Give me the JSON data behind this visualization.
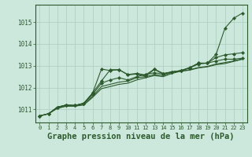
{
  "background_color": "#cce8dc",
  "grid_color": "#aaccbb",
  "line_color": "#2d5a2d",
  "marker_color": "#2d5a2d",
  "xlabel": "Graphe pression niveau de la mer (hPa)",
  "xlabel_fontsize": 7.5,
  "ylabel_ticks": [
    1011,
    1012,
    1013,
    1014,
    1015
  ],
  "xlim": [
    -0.5,
    23.5
  ],
  "ylim": [
    1010.4,
    1015.8
  ],
  "xticks": [
    0,
    1,
    2,
    3,
    4,
    5,
    6,
    7,
    8,
    9,
    10,
    11,
    12,
    13,
    14,
    15,
    16,
    17,
    18,
    19,
    20,
    21,
    22,
    23
  ],
  "series": [
    [
      1010.7,
      1010.8,
      1011.05,
      1011.15,
      1011.15,
      1011.2,
      1011.55,
      1011.95,
      1012.05,
      1012.15,
      1012.2,
      1012.35,
      1012.45,
      1012.55,
      1012.5,
      1012.65,
      1012.75,
      1012.8,
      1012.9,
      1012.95,
      1013.05,
      1013.1,
      1013.2,
      1013.3
    ],
    [
      1010.7,
      1010.8,
      1011.05,
      1011.15,
      1011.15,
      1011.25,
      1011.6,
      1012.05,
      1012.15,
      1012.25,
      1012.3,
      1012.45,
      1012.5,
      1012.6,
      1012.55,
      1012.7,
      1012.75,
      1012.82,
      1012.92,
      1012.97,
      1013.08,
      1013.15,
      1013.22,
      1013.32
    ],
    [
      1010.7,
      1010.8,
      1011.1,
      1011.2,
      1011.18,
      1011.28,
      1011.68,
      1012.2,
      1012.35,
      1012.45,
      1012.35,
      1012.5,
      1012.6,
      1012.68,
      1012.62,
      1012.72,
      1012.77,
      1012.9,
      1013.08,
      1013.12,
      1013.22,
      1013.3,
      1013.3,
      1013.35
    ],
    [
      1010.7,
      1010.8,
      1011.1,
      1011.2,
      1011.18,
      1011.28,
      1011.75,
      1012.3,
      1012.82,
      1012.82,
      1012.6,
      1012.65,
      1012.58,
      1012.85,
      1012.65,
      1012.72,
      1012.78,
      1012.9,
      1013.12,
      1013.12,
      1013.38,
      1013.5,
      1013.55,
      1013.6
    ],
    [
      1010.7,
      1010.8,
      1011.1,
      1011.2,
      1011.18,
      1011.28,
      1011.75,
      1012.85,
      1012.78,
      1012.82,
      1012.58,
      1012.62,
      1012.52,
      1012.83,
      1012.62,
      1012.72,
      1012.78,
      1012.92,
      1013.12,
      1013.12,
      1013.52,
      1014.72,
      1015.18,
      1015.42
    ]
  ],
  "marker_series": [
    2,
    3,
    4
  ],
  "no_marker_series": [
    0,
    1
  ]
}
